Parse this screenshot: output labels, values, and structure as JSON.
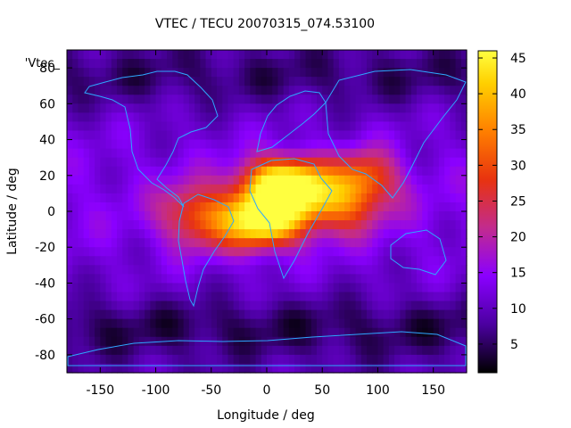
{
  "chart_data": {
    "type": "heatmap",
    "title": "VTEC / TECU 20070315_074.53100",
    "xlabel": "Longitude / deg",
    "ylabel": "Latitude / deg",
    "legend_key": "'Vtec_",
    "xlim": [
      -180,
      180
    ],
    "ylim": [
      -90,
      90
    ],
    "x_ticks": [
      -150,
      -100,
      -50,
      0,
      50,
      100,
      150
    ],
    "y_ticks": [
      80,
      60,
      40,
      20,
      0,
      -20,
      -40,
      -60,
      -80
    ],
    "colorbar": {
      "range": [
        1,
        46
      ],
      "ticks": [
        5,
        10,
        15,
        20,
        25,
        30,
        35,
        40,
        45
      ],
      "colormap": [
        "#000000",
        "#4b00a0",
        "#8a00ff",
        "#c22b8e",
        "#e8330f",
        "#ff7f00",
        "#ffd000",
        "#ffff40"
      ]
    },
    "coastline_color": "#2ea8ff",
    "grid": false,
    "peaks": [
      {
        "lon": 15,
        "lat": 15,
        "vtec": 45
      },
      {
        "lon": 0,
        "lat": -5,
        "vtec": 40
      },
      {
        "lon": 60,
        "lat": 5,
        "vtec": 33
      },
      {
        "lon": 90,
        "lat": 20,
        "vtec": 28
      }
    ]
  }
}
